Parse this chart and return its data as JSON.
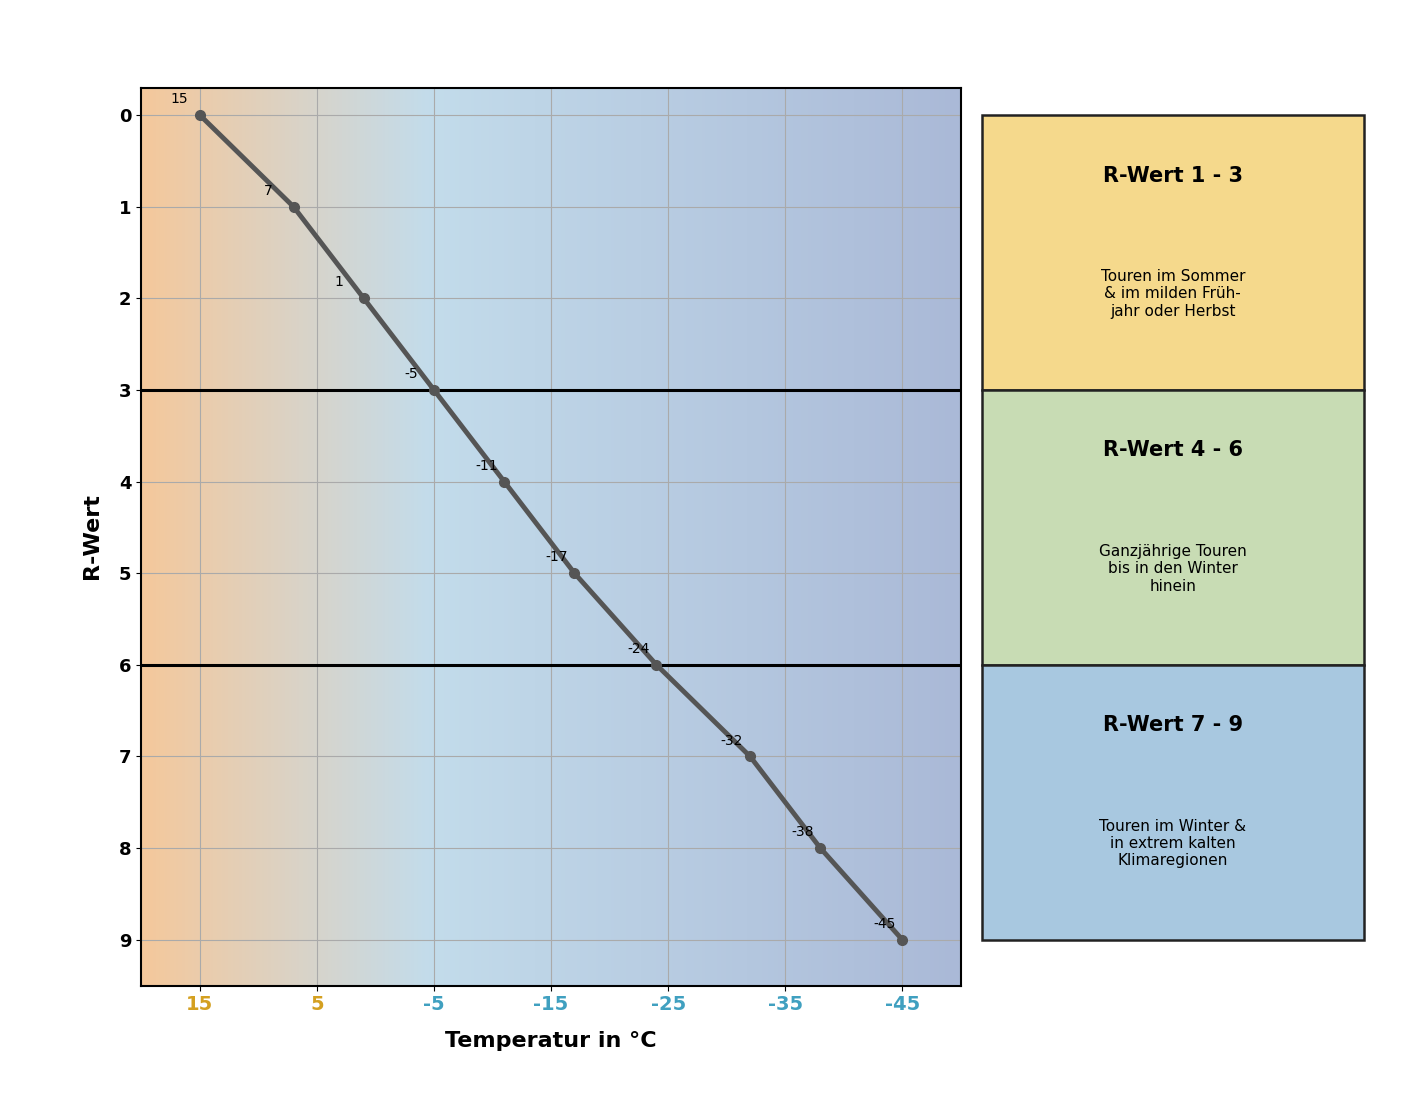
{
  "title": "",
  "xlabel": "Temperatur in °C",
  "ylabel": "R-Wert",
  "x_data": [
    15,
    7,
    1,
    -5,
    -11,
    -17,
    -24,
    -32,
    -38,
    -45
  ],
  "y_data": [
    0,
    1,
    2,
    3,
    4,
    5,
    6,
    7,
    8,
    9
  ],
  "x_ticks": [
    15,
    5,
    -5,
    -15,
    -25,
    -35,
    -45
  ],
  "x_tick_colors": [
    "#d4a020",
    "#d4a020",
    "#40a0c0",
    "#40a0c0",
    "#40a0c0",
    "#40a0c0",
    "#40a0c0"
  ],
  "y_ticks": [
    0,
    1,
    2,
    3,
    4,
    5,
    6,
    7,
    8,
    9
  ],
  "xlim_left": 20,
  "xlim_right": -50,
  "ylim_bottom": 9.5,
  "ylim_top": -0.3,
  "line_color": "#555555",
  "line_width": 3.5,
  "marker_color": "#555555",
  "marker_size": 7,
  "grid_color": "#aaaaaa",
  "warm_color": [
    245,
    200,
    155
  ],
  "mid_color": [
    195,
    220,
    235
  ],
  "cold_color": [
    170,
    185,
    215
  ],
  "box1_color": "#f5d98c",
  "box1_edge": "#222222",
  "box1_title": "R-Wert 1 - 3",
  "box1_text": "Touren im Sommer\n& im milden Früh-\njahr oder Herbst",
  "box2_color": "#c8dcb4",
  "box2_edge": "#222222",
  "box2_title": "R-Wert 4 - 6",
  "box2_text": "Ganzjährige Touren\nbis in den Winter\nhinein",
  "box3_color": "#a8c8e0",
  "box3_edge": "#222222",
  "box3_title": "R-Wert 7 - 9",
  "box3_text": "Touren im Winter &\nin extrem kalten\nKlimaregionen",
  "point_labels": [
    "15",
    "7",
    "1",
    "-5",
    "-11",
    "-17",
    "-24",
    "-32",
    "-38",
    "-45"
  ],
  "point_label_dx": [
    2.5,
    2.5,
    2.5,
    2.5,
    2.5,
    2.5,
    2.5,
    2.5,
    2.5,
    2.5
  ],
  "point_label_dy": [
    -0.25,
    -0.25,
    -0.25,
    -0.25,
    -0.25,
    -0.25,
    -0.25,
    -0.25,
    -0.25,
    -0.25
  ]
}
